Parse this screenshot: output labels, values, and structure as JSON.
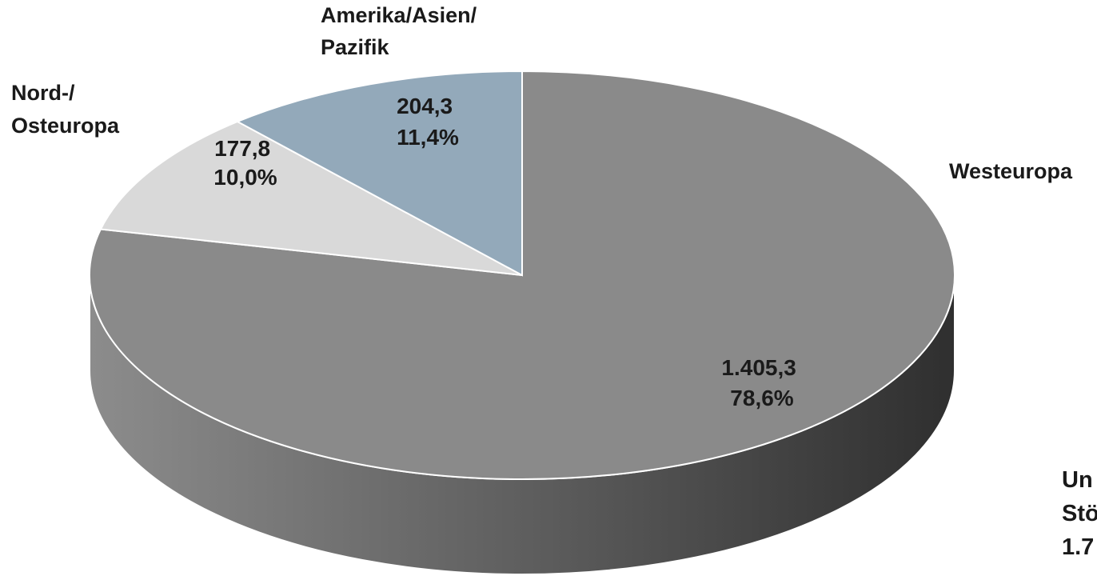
{
  "chart_data": {
    "type": "pie",
    "style": "3d",
    "slices": [
      {
        "name": "Westeuropa",
        "value": 1405.3,
        "value_label": "1.405,3",
        "percent": 78.6,
        "percent_label": "78,6%",
        "color": "#8a8a8a"
      },
      {
        "name": "Nord-/ Osteuropa",
        "value": 177.8,
        "value_label": "177,8",
        "percent": 10.0,
        "percent_label": "10,0%",
        "color": "#d9d9d9"
      },
      {
        "name": "Amerika/Asien/ Pazifik",
        "value": 204.3,
        "value_label": "204,3",
        "percent": 11.4,
        "percent_label": "11,4%",
        "color": "#93a9ba"
      }
    ],
    "total_annotation": [
      "Un",
      "Stö",
      "1.7"
    ],
    "legend": "none"
  }
}
